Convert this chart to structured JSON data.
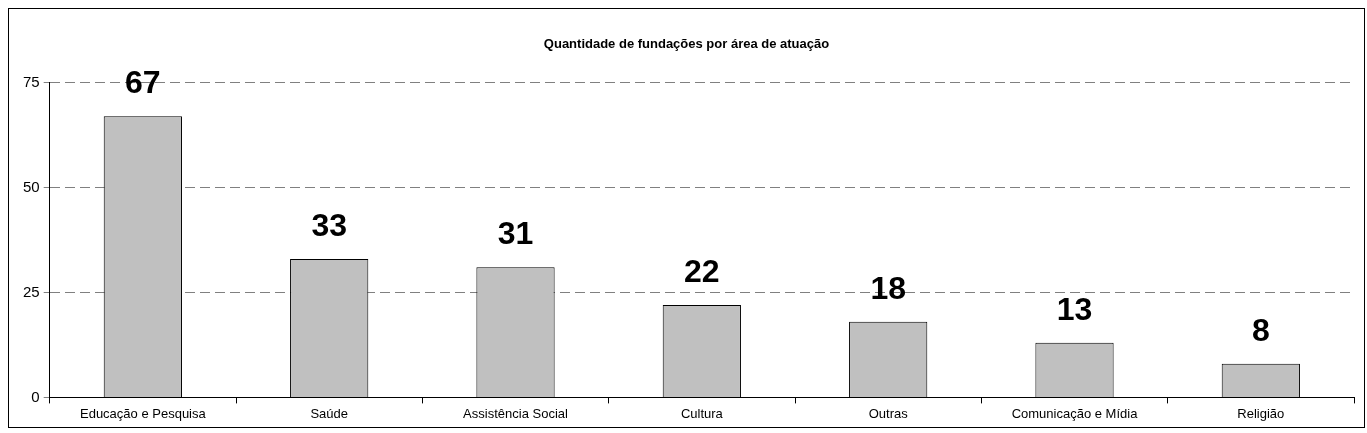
{
  "chart_data": {
    "type": "bar",
    "title": "Quantidade de fundações por área de atuação",
    "categories": [
      "Educação e Pesquisa",
      "Saúde",
      "Assistência Social",
      "Cultura",
      "Outras",
      "Comunicação e Mídia",
      "Religião"
    ],
    "values": [
      67,
      33,
      31,
      22,
      18,
      13,
      8
    ],
    "color": "#c0c0c0",
    "ylim": [
      0,
      75
    ],
    "yticks": [
      0,
      25,
      50,
      75
    ],
    "grid": "y",
    "line_style": "dashed",
    "data_labels": true,
    "legend": false
  }
}
